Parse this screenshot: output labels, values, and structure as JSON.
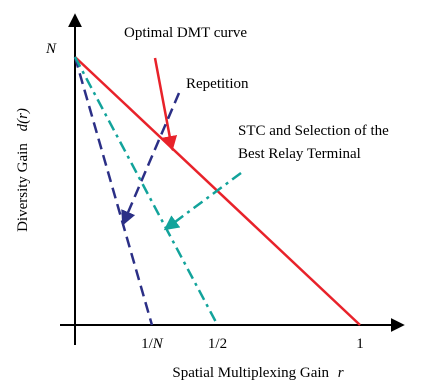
{
  "chart_data": {
    "type": "line",
    "title": "",
    "xlabel": "Spatial Multiplexing Gain",
    "xlabel_symbol": "r",
    "ylabel": "Diversity Gain",
    "ylabel_symbol": "d(r)",
    "x_ticks": [
      {
        "value": 0.27,
        "label": "1/N"
      },
      {
        "value": 0.5,
        "label": "1/2"
      },
      {
        "value": 1,
        "label": "1"
      }
    ],
    "y_ticks": [
      {
        "value": 1,
        "label": "N"
      }
    ],
    "xlim": [
      0,
      1
    ],
    "ylim": [
      0,
      1
    ],
    "grid": false,
    "series": [
      {
        "name": "Optimal DMT curve",
        "color": "#e8222a",
        "style": "solid",
        "x": [
          0,
          1
        ],
        "y": [
          1,
          0
        ]
      },
      {
        "name": "Repetition",
        "color": "#2b2f86",
        "style": "dashed",
        "x": [
          0,
          0.27
        ],
        "y": [
          1,
          0
        ]
      },
      {
        "name": "STC and Selection of the Best Relay Terminal",
        "color": "#12a39b",
        "style": "dashdot",
        "x": [
          0,
          0.5
        ],
        "y": [
          1,
          0
        ]
      }
    ],
    "annotations": [
      {
        "lines": [
          "Optimal DMT curve"
        ],
        "series_index": 0,
        "arrow_color": "#e8222a",
        "arrow_target": [
          0.34,
          0.66
        ]
      },
      {
        "lines": [
          "Repetition"
        ],
        "series_index": 1,
        "arrow_color": "#2b2f86",
        "arrow_target": [
          0.17,
          0.38
        ]
      },
      {
        "lines": [
          "STC and Selection of the",
          "Best Relay Terminal"
        ],
        "series_index": 2,
        "arrow_color": "#12a39b",
        "arrow_target": [
          0.32,
          0.36
        ]
      }
    ]
  }
}
